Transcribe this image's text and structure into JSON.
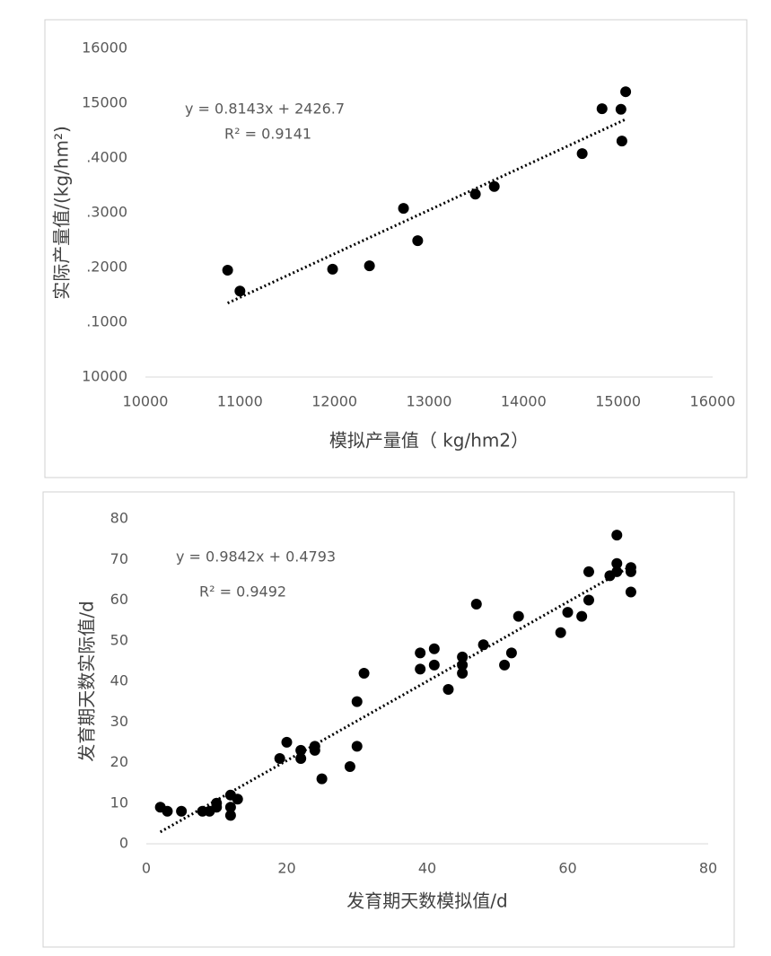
{
  "chart_data": [
    {
      "type": "scatter",
      "xlabel": "模拟产量值（ kg/hm2）",
      "ylabel": "实际产量值/(kg/hm²)",
      "annotations": [
        "y = 0.8143x + 2426.7",
        "R² = 0.9141"
      ],
      "x": [
        10870,
        11000,
        11980,
        12370,
        12730,
        12880,
        13490,
        13690,
        14620,
        14830,
        15030,
        15040,
        15080
      ],
      "values": [
        11950,
        11570,
        11970,
        12030,
        13080,
        12490,
        13340,
        13480,
        14080,
        14900,
        14890,
        14310,
        15210
      ],
      "color": "#000000",
      "xlim": [
        10000,
        16000
      ],
      "xticks": [
        10000,
        11000,
        12000,
        13000,
        14000,
        15000,
        16000
      ],
      "ylim": [
        10000,
        16000
      ],
      "yticks": [
        10000,
        {
          "value": 11000,
          "label": ".1000"
        },
        {
          "value": 12000,
          "label": ".2000"
        },
        {
          "value": 13000,
          "label": ".3000"
        },
        {
          "value": 14000,
          "label": ".4000"
        },
        15000,
        16000
      ]
    },
    {
      "type": "scatter",
      "xlabel": "发育期天数模拟值/d",
      "ylabel": "发育期天数实际值/d",
      "annotations": [
        "y = 0.9842x + 0.4793",
        "R² = 0.9492"
      ],
      "x": [
        2,
        3,
        5,
        8,
        9,
        10,
        10,
        12,
        12,
        12,
        13,
        19,
        20,
        22,
        22,
        24,
        24,
        25,
        29,
        30,
        30,
        31,
        39,
        39,
        41,
        41,
        43,
        45,
        45,
        45,
        47,
        48,
        51,
        52,
        53,
        59,
        60,
        62,
        63,
        63,
        66,
        67,
        67,
        67,
        69,
        69,
        69
      ],
      "values": [
        9,
        8,
        8,
        8,
        8,
        9,
        10,
        12,
        9,
        7,
        11,
        21,
        25,
        21,
        23,
        23,
        24,
        16,
        19,
        24,
        35,
        42,
        43,
        47,
        48,
        44,
        38,
        42,
        44,
        46,
        59,
        49,
        44,
        47,
        56,
        52,
        57,
        56,
        60,
        67,
        66,
        67,
        69,
        76,
        68,
        67,
        62
      ],
      "color": "#000000",
      "xlim": [
        0,
        80
      ],
      "xticks": [
        0,
        20,
        40,
        60,
        80
      ],
      "ylim": [
        0,
        80
      ],
      "yticks": [
        0,
        10,
        20,
        30,
        40,
        50,
        60,
        70,
        80
      ]
    }
  ]
}
